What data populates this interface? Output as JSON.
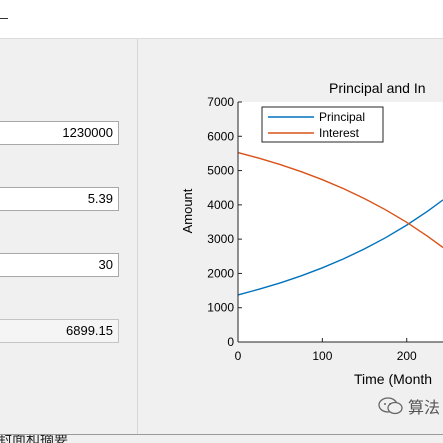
{
  "left_panel": {
    "fields": [
      {
        "value": "1230000",
        "readonly": false
      },
      {
        "value": "5.39",
        "readonly": false
      },
      {
        "value": "30",
        "readonly": false
      },
      {
        "value": "6899.15",
        "readonly": true
      }
    ]
  },
  "bottom_text": "封面和摘要",
  "watermark": {
    "text": "算法",
    "icon": "wechat-icon"
  },
  "colors": {
    "principal": "#0072bd",
    "interest": "#d95319"
  },
  "chart_data": {
    "type": "line",
    "title": "Principal and In",
    "xlabel": "Time (Month",
    "ylabel": "Amount",
    "xlim": [
      0,
      243
    ],
    "ylim": [
      0,
      7000
    ],
    "xticks": [
      "0",
      "100",
      "200"
    ],
    "xtick_values": [
      0,
      100,
      200
    ],
    "yticks": [
      "0",
      "1000",
      "2000",
      "3000",
      "4000",
      "5000",
      "6000",
      "7000"
    ],
    "ytick_values": [
      0,
      1000,
      2000,
      3000,
      4000,
      5000,
      6000,
      7000
    ],
    "legend": "top-left",
    "series": [
      {
        "name": "Principal",
        "color": "#0072bd",
        "x": [
          0,
          25,
          50,
          75,
          100,
          125,
          150,
          175,
          200,
          225,
          243
        ],
        "y": [
          1374,
          1539,
          1724,
          1932,
          2164,
          2425,
          2716,
          3043,
          3409,
          3819,
          4144
        ]
      },
      {
        "name": "Interest",
        "color": "#d95319",
        "x": [
          0,
          25,
          50,
          75,
          100,
          125,
          150,
          175,
          200,
          225,
          243
        ],
        "y": [
          5525,
          5360,
          5175,
          4967,
          4735,
          4474,
          4183,
          3856,
          3490,
          3080,
          2755
        ]
      }
    ]
  }
}
